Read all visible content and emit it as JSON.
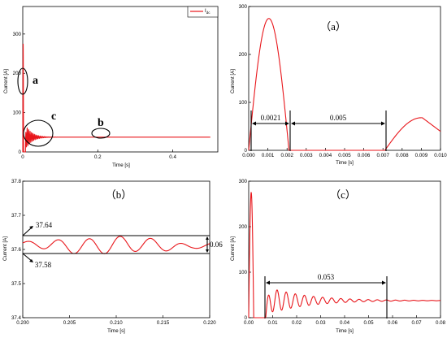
{
  "colors": {
    "curve": "#e8161b",
    "ink": "#000000"
  },
  "chart_data": [
    {
      "type": "line",
      "panel": "main",
      "x": [
        0,
        0.002,
        0.007,
        0.01,
        0.015,
        0.02,
        0.03,
        0.04,
        0.06,
        0.1,
        0.2,
        0.3,
        0.4,
        0.5
      ],
      "series": [
        {
          "name": "Idc",
          "values": [
            0,
            275,
            0,
            68,
            40,
            60,
            36,
            42,
            37,
            37,
            37.6,
            37.6,
            37.6,
            37.6
          ]
        }
      ],
      "xlabel": "Time [s]",
      "ylabel": "Current [A]",
      "xlim": [
        0,
        0.52
      ],
      "ylim": [
        0,
        370
      ],
      "xticks": [
        "0",
        "0.2",
        "0.4"
      ],
      "yticks": [
        "0",
        "100",
        "200",
        "300"
      ],
      "legend": {
        "position": "top-right",
        "label_main": "I",
        "label_sub": "dc"
      },
      "annotations": [
        "a",
        "b",
        "c"
      ]
    },
    {
      "type": "line",
      "panel": "a",
      "title": "（a）",
      "x": [
        0,
        0.001,
        0.0021,
        0.0071,
        0.009,
        0.0095,
        0.01
      ],
      "series": [
        {
          "values": [
            0,
            275,
            0,
            0,
            68,
            60,
            37
          ]
        }
      ],
      "xlabel": "Time [s]",
      "ylabel": "Current [A]",
      "xlim": [
        0,
        0.01
      ],
      "ylim": [
        0,
        300
      ],
      "xticks": [
        "0.000",
        "0.001",
        "0.002",
        "0.003",
        "0.004",
        "0.005",
        "0.006",
        "0.007",
        "0.008",
        "0.009",
        "0.010"
      ],
      "yticks": [
        "0",
        "100",
        "200",
        "300"
      ],
      "annotations": [
        "0.0021",
        "0.005"
      ]
    },
    {
      "type": "line",
      "panel": "b",
      "title": "（b）",
      "x": [
        0.2,
        0.205,
        0.21,
        0.212,
        0.215,
        0.22
      ],
      "series": [
        {
          "values": [
            37.61,
            37.6,
            37.62,
            37.64,
            37.6,
            37.63
          ]
        }
      ],
      "xlabel": "Time [s]",
      "ylabel": "Current [A]",
      "xlim": [
        0.2,
        0.22
      ],
      "ylim": [
        37.4,
        37.8
      ],
      "xticks": [
        "0.200",
        "0.205",
        "0.210",
        "0.215",
        "0.220"
      ],
      "yticks": [
        "37.4",
        "37.5",
        "37.6",
        "37.7",
        "37.8"
      ],
      "annotations": [
        "37.64",
        "37.58",
        "0.06"
      ]
    },
    {
      "type": "line",
      "panel": "c",
      "title": "（c）",
      "x": [
        0,
        0.002,
        0.007,
        0.009,
        0.02,
        0.04,
        0.06,
        0.08
      ],
      "series": [
        {
          "values": [
            0,
            275,
            0,
            68,
            55,
            40,
            37,
            37.5
          ]
        }
      ],
      "xlabel": "Time [s]",
      "ylabel": "Current [A]",
      "xlim": [
        0,
        0.08
      ],
      "ylim": [
        0,
        300
      ],
      "xticks": [
        "0.00",
        "0.01",
        "0.02",
        "0.03",
        "0.04",
        "0.05",
        "0.06",
        "0.07",
        "0.08"
      ],
      "yticks": [
        "0",
        "100",
        "200",
        "300"
      ],
      "annotations": [
        "0.053"
      ]
    }
  ]
}
